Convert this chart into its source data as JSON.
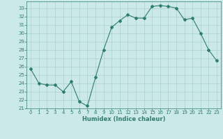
{
  "x": [
    0,
    1,
    2,
    3,
    4,
    5,
    6,
    7,
    8,
    9,
    10,
    11,
    12,
    13,
    14,
    15,
    16,
    17,
    18,
    19,
    20,
    21,
    22,
    23
  ],
  "y": [
    25.7,
    24.0,
    23.8,
    23.8,
    23.0,
    24.2,
    21.8,
    21.3,
    24.7,
    28.0,
    30.7,
    31.5,
    32.2,
    31.8,
    31.8,
    33.2,
    33.3,
    33.2,
    33.0,
    31.6,
    31.8,
    30.0,
    28.0,
    26.7
  ],
  "xlabel": "Humidex (Indice chaleur)",
  "line_color": "#2e7d6e",
  "marker": "D",
  "marker_size": 2,
  "bg_color": "#cce9e9",
  "grid_color": "#aacfcf",
  "ylim": [
    21,
    33.8
  ],
  "xlim": [
    -0.5,
    23.5
  ],
  "yticks": [
    21,
    22,
    23,
    24,
    25,
    26,
    27,
    28,
    29,
    30,
    31,
    32,
    33
  ],
  "xticks": [
    0,
    1,
    2,
    3,
    4,
    5,
    6,
    7,
    8,
    9,
    10,
    11,
    12,
    13,
    14,
    15,
    16,
    17,
    18,
    19,
    20,
    21,
    22,
    23
  ],
  "tick_fontsize": 5,
  "xlabel_fontsize": 6,
  "linewidth": 0.8
}
